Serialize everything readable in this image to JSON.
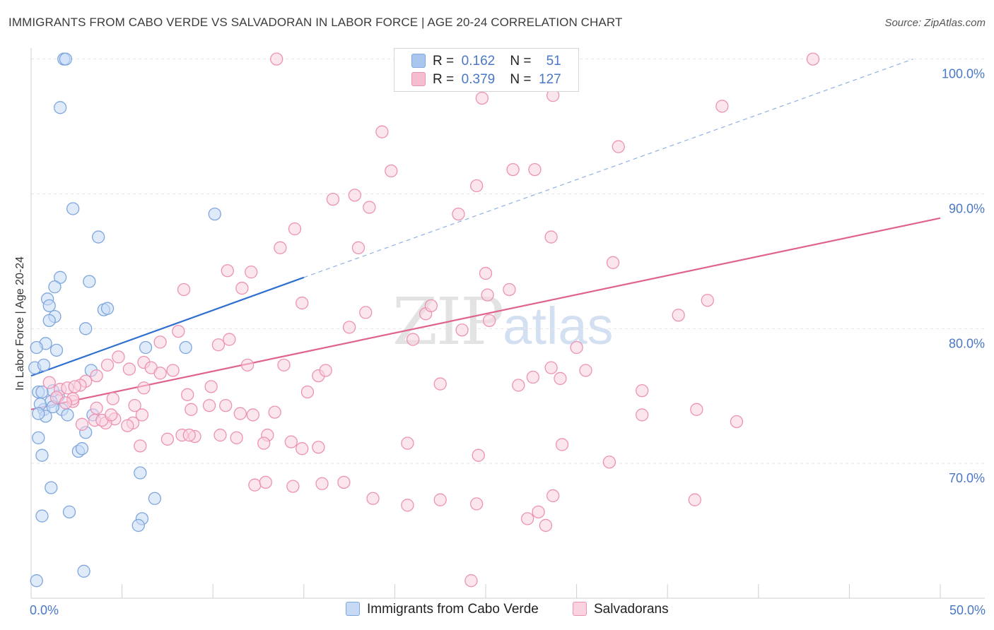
{
  "title": "IMMIGRANTS FROM CABO VERDE VS SALVADORAN IN LABOR FORCE | AGE 20-24 CORRELATION CHART",
  "source": "Source: ZipAtlas.com",
  "watermark": {
    "zip": "ZIP",
    "atlas": "atlas"
  },
  "legend": {
    "rows": [
      {
        "r_label": "R =",
        "r_value": "0.162",
        "n_label": "N =",
        "n_value": "51",
        "color": "#a9c6ee",
        "border": "#7fa6dd"
      },
      {
        "r_label": "R =",
        "r_value": "0.379",
        "n_label": "N =",
        "n_value": "127",
        "color": "#f6bcd0",
        "border": "#ec93b2"
      }
    ]
  },
  "bottom_legend": [
    {
      "label": "Immigrants from Cabo Verde",
      "color": "#c7daf5",
      "border": "#7fa6dd"
    },
    {
      "label": "Salvadorans",
      "color": "#fad2e0",
      "border": "#ec93b2"
    }
  ],
  "chart_data": {
    "type": "scatter",
    "title": "IMMIGRANTS FROM CABO VERDE VS SALVADORAN IN LABOR FORCE | AGE 20-24 CORRELATION CHART",
    "xlabel": "",
    "ylabel": "In Labor Force | Age 20-24",
    "xlim": [
      0,
      50
    ],
    "ylim": [
      60,
      101.5
    ],
    "x_tick_labels": [
      "0.0%",
      "50.0%"
    ],
    "y_ticks": [
      70,
      80,
      90,
      100
    ],
    "y_tick_labels": [
      "70.0%",
      "80.0%",
      "90.0%",
      "100.0%"
    ],
    "grid": true,
    "series": [
      {
        "name": "Immigrants from Cabo Verde",
        "color": "#7fa6dd",
        "fill": "#c7daf5",
        "trend_start": [
          0,
          76.5
        ],
        "trend_end": [
          15.0,
          83.8
        ],
        "trend_extension_end": [
          48.5,
          100.0
        ],
        "x": [
          1.8,
          1.9,
          1.6,
          1.7,
          0.2,
          0.4,
          0.8,
          1.3,
          1.5,
          0.7,
          1.1,
          2.3,
          3.2,
          4.0,
          4.2,
          0.9,
          1.0,
          1.6,
          3.0,
          1.3,
          1.0,
          0.8,
          1.2,
          0.5,
          0.3,
          0.4,
          0.6,
          1.4,
          1.2,
          0.6,
          0.7,
          2.6,
          2.8,
          3.0,
          3.3,
          6.3,
          6.1,
          6.8,
          8.5,
          10.1,
          1.1,
          0.6,
          3.7,
          3.4,
          2.1,
          2.9,
          2.0,
          5.9,
          0.4,
          6.0,
          0.3
        ],
        "y": [
          100.0,
          100.0,
          96.4,
          74.0,
          77.1,
          75.3,
          78.9,
          80.9,
          75.0,
          74.0,
          74.6,
          88.9,
          83.5,
          81.4,
          81.5,
          82.2,
          81.7,
          83.8,
          80.0,
          83.1,
          80.6,
          73.5,
          74.2,
          74.4,
          78.6,
          71.9,
          70.6,
          78.4,
          75.4,
          75.3,
          77.3,
          70.9,
          71.1,
          72.3,
          76.9,
          78.6,
          65.9,
          67.4,
          78.6,
          88.5,
          68.2,
          66.1,
          86.8,
          73.6,
          66.4,
          62.0,
          73.6,
          65.4,
          73.7,
          69.3,
          61.3
        ]
      },
      {
        "name": "Salvadorans",
        "color": "#ec93b2",
        "fill": "#fad2e0",
        "trend_start": [
          0,
          74.0
        ],
        "trend_end": [
          50,
          88.2
        ],
        "x": [
          13.5,
          43.0,
          19.3,
          27.7,
          38.0,
          24.8,
          32.3,
          32.0,
          28.6,
          26.5,
          24.5,
          19.8,
          28.7,
          17.8,
          16.6,
          18.6,
          23.5,
          14.5,
          13.7,
          11.6,
          12.1,
          18.0,
          25.0,
          10.8,
          8.4,
          14.9,
          21.7,
          23.7,
          25.2,
          26.3,
          17.5,
          25.1,
          37.2,
          22.0,
          30.0,
          27.6,
          29.1,
          28.6,
          8.1,
          18.4,
          10.9,
          7.1,
          1.0,
          1.6,
          3.0,
          2.0,
          1.4,
          2.3,
          3.6,
          4.8,
          5.4,
          4.2,
          6.2,
          7.8,
          8.6,
          9.8,
          6.6,
          10.3,
          11.9,
          7.1,
          6.2,
          9.9,
          13.9,
          15.8,
          16.2,
          15.2,
          11.5,
          13.4,
          12.2,
          4.6,
          5.6,
          3.5,
          2.8,
          4.1,
          5.3,
          7.5,
          9.0,
          10.4,
          11.3,
          13.0,
          12.8,
          14.3,
          14.9,
          15.8,
          3.9,
          6.0,
          8.3,
          12.3,
          14.4,
          16.0,
          17.2,
          18.8,
          20.7,
          22.5,
          24.5,
          27.3,
          27.9,
          28.3,
          29.2,
          31.8,
          33.6,
          36.5,
          38.8,
          10.7,
          12.9,
          8.8,
          8.7,
          3.6,
          5.7,
          6.1,
          2.7,
          2.3,
          1.9,
          4.5,
          4.4,
          2.4,
          20.7,
          24.2,
          35.6,
          22.5,
          21.0,
          30.5,
          33.6,
          28.7,
          26.8,
          24.6,
          36.6
        ],
        "y": [
          100.0,
          100.0,
          94.6,
          91.8,
          96.5,
          97.1,
          93.5,
          84.9,
          86.8,
          91.8,
          90.6,
          91.7,
          97.3,
          89.9,
          89.6,
          89.0,
          88.5,
          87.4,
          86.0,
          83.0,
          84.2,
          86.0,
          84.1,
          84.3,
          82.9,
          81.9,
          81.1,
          79.9,
          80.6,
          82.9,
          80.1,
          82.5,
          82.1,
          81.7,
          78.6,
          76.4,
          76.3,
          77.1,
          79.8,
          81.2,
          79.2,
          79.0,
          76.0,
          75.5,
          76.1,
          75.6,
          74.9,
          74.6,
          76.5,
          77.9,
          77.0,
          77.3,
          77.5,
          76.9,
          75.1,
          74.3,
          77.1,
          78.8,
          77.3,
          76.7,
          75.6,
          75.7,
          77.3,
          76.5,
          76.9,
          75.3,
          73.7,
          73.8,
          73.6,
          73.3,
          73.0,
          73.2,
          72.9,
          73.0,
          72.8,
          71.8,
          72.0,
          72.1,
          71.9,
          72.1,
          71.5,
          71.6,
          71.1,
          71.2,
          73.2,
          71.3,
          72.1,
          68.4,
          68.3,
          68.5,
          68.6,
          67.4,
          66.9,
          67.3,
          67.0,
          65.9,
          66.4,
          65.4,
          71.4,
          70.1,
          75.4,
          67.3,
          73.1,
          74.3,
          68.6,
          74.0,
          72.1,
          74.1,
          74.3,
          73.6,
          75.8,
          74.8,
          74.5,
          74.8,
          73.6,
          75.7,
          71.5,
          61.3,
          81.0,
          75.9,
          79.2,
          76.9,
          73.6,
          67.6,
          75.8,
          70.6,
          74.0
        ]
      }
    ]
  }
}
